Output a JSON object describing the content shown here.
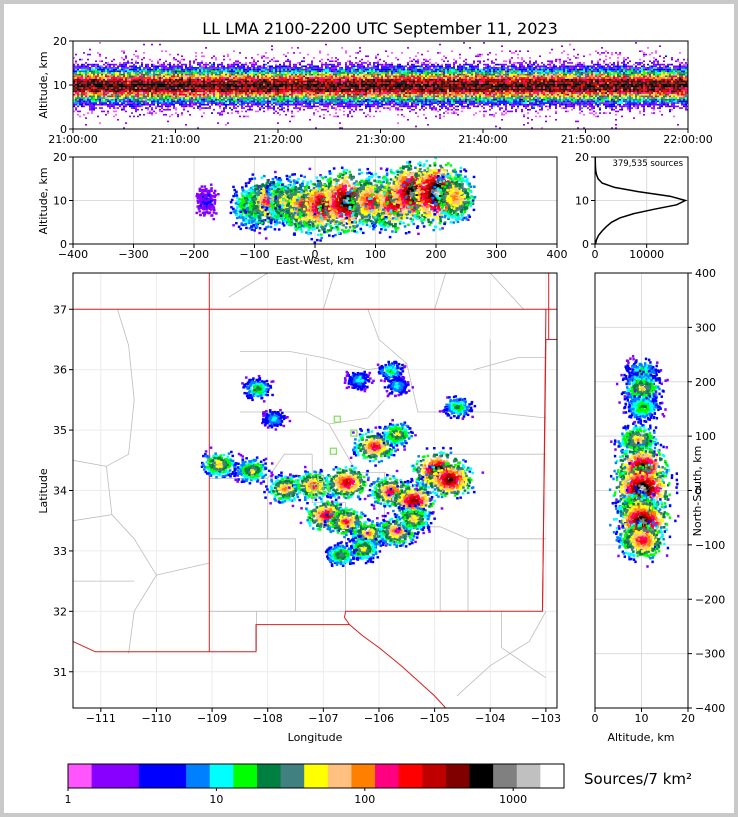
{
  "title": "LL LMA 2100-2200 UTC September 11, 2023",
  "colors": {
    "state_border": "#d62020",
    "county_border": "#bdbdbd",
    "station": "#7ee05a",
    "grid": "#dcdcdc"
  },
  "colorbar": {
    "label": "Sources/7 km²",
    "colors": [
      "#ff55ff",
      "#8800ff",
      "#8800ff",
      "#0000ff",
      "#0000ff",
      "#0080ff",
      "#00ffff",
      "#00ff00",
      "#008040",
      "#408080",
      "#ffff00",
      "#ffc080",
      "#ff8000",
      "#ff0080",
      "#ff0000",
      "#c00000",
      "#800000",
      "#000000",
      "#808080",
      "#c0c0c0",
      "#ffffff"
    ],
    "ticks": [
      "1",
      "10",
      "100",
      "1000"
    ]
  },
  "chart_data": [
    {
      "id": "time-height",
      "type": "heatmap",
      "xlabel": "",
      "ylabel": "Altitude, km",
      "x_ticks": [
        "21:00:00",
        "21:10:00",
        "21:20:00",
        "21:30:00",
        "21:40:00",
        "21:50:00",
        "22:00:00"
      ],
      "xlim": [
        "21:00:00",
        "22:00:00"
      ],
      "ylim": [
        0,
        20
      ],
      "y_ticks": [
        0,
        10,
        20
      ],
      "description_of_values": "dense sources between ~5 and ~15 km, peak near 10 km throughout the hour"
    },
    {
      "id": "eastwest-altitude",
      "type": "heatmap",
      "xlabel": "East-West, km",
      "ylabel": "Altitude, km",
      "xlim": [
        -400,
        400
      ],
      "ylim": [
        0,
        20
      ],
      "x_ticks": [
        -400,
        -300,
        -200,
        -100,
        0,
        100,
        200,
        300,
        400
      ],
      "y_ticks": [
        0,
        10,
        20
      ],
      "cells": [
        {
          "x": -180,
          "y": 10,
          "level": 2
        },
        {
          "x": -110,
          "y": 9,
          "level": 9
        },
        {
          "x": -80,
          "y": 10,
          "level": 13
        },
        {
          "x": -50,
          "y": 10,
          "level": 11
        },
        {
          "x": -20,
          "y": 9,
          "level": 14
        },
        {
          "x": 10,
          "y": 9,
          "level": 16
        },
        {
          "x": 50,
          "y": 10,
          "level": 18
        },
        {
          "x": 90,
          "y": 10,
          "level": 14
        },
        {
          "x": 130,
          "y": 10,
          "level": 16
        },
        {
          "x": 160,
          "y": 12,
          "level": 18
        },
        {
          "x": 200,
          "y": 12,
          "level": 19
        },
        {
          "x": 230,
          "y": 11,
          "level": 12
        }
      ]
    },
    {
      "id": "altitude-histogram",
      "type": "line",
      "annotation": "379,535 sources",
      "xlim": [
        0,
        18000
      ],
      "ylim": [
        0,
        20
      ],
      "x_ticks": [
        0,
        10000
      ],
      "y_ticks": [
        0,
        10,
        20
      ],
      "altitude_km": [
        0,
        1,
        2,
        3,
        4,
        5,
        6,
        7,
        8,
        9,
        10,
        11,
        12,
        13,
        14,
        15,
        16,
        17,
        18,
        19,
        20
      ],
      "sources": [
        100,
        300,
        700,
        1400,
        2200,
        3200,
        4800,
        7500,
        11500,
        15800,
        17500,
        14500,
        8500,
        3800,
        1400,
        600,
        280,
        140,
        80,
        50,
        30
      ]
    },
    {
      "id": "plan-view",
      "type": "heatmap",
      "xlabel": "Longitude",
      "ylabel": "Latitude",
      "xlim": [
        -111.5,
        -102.8
      ],
      "ylim": [
        30.4,
        37.6
      ],
      "x_ticks": [
        "−111",
        "−110",
        "−109",
        "−108",
        "−107",
        "−106",
        "−105",
        "−104",
        "−103"
      ],
      "x_tick_values": [
        -111,
        -110,
        -109,
        -108,
        -107,
        -106,
        -105,
        -104,
        -103
      ],
      "y_ticks": [
        31,
        32,
        33,
        34,
        35,
        36,
        37
      ],
      "cells": [
        {
          "lon": -108.2,
          "lat": 35.7,
          "level": 8
        },
        {
          "lon": -107.9,
          "lat": 35.2,
          "level": 6
        },
        {
          "lon": -108.9,
          "lat": 34.45,
          "level": 11
        },
        {
          "lon": -108.3,
          "lat": 34.35,
          "level": 10
        },
        {
          "lon": -107.7,
          "lat": 34.05,
          "level": 12
        },
        {
          "lon": -107.2,
          "lat": 34.1,
          "level": 13
        },
        {
          "lon": -106.6,
          "lat": 34.15,
          "level": 15
        },
        {
          "lon": -106.1,
          "lat": 34.75,
          "level": 14
        },
        {
          "lon": -105.7,
          "lat": 34.95,
          "level": 10
        },
        {
          "lon": -105.8,
          "lat": 34.0,
          "level": 14
        },
        {
          "lon": -105.4,
          "lat": 33.85,
          "level": 16
        },
        {
          "lon": -104.95,
          "lat": 34.35,
          "level": 18
        },
        {
          "lon": -104.75,
          "lat": 34.2,
          "level": 17
        },
        {
          "lon": -106.95,
          "lat": 33.6,
          "level": 15
        },
        {
          "lon": -106.6,
          "lat": 33.5,
          "level": 13
        },
        {
          "lon": -106.2,
          "lat": 33.3,
          "level": 12
        },
        {
          "lon": -105.7,
          "lat": 33.35,
          "level": 13
        },
        {
          "lon": -105.4,
          "lat": 33.55,
          "level": 11
        },
        {
          "lon": -106.3,
          "lat": 33.05,
          "level": 10
        },
        {
          "lon": -106.7,
          "lat": 32.95,
          "level": 9
        },
        {
          "lon": -106.4,
          "lat": 35.85,
          "level": 6
        },
        {
          "lon": -105.8,
          "lat": 36.0,
          "level": 7
        },
        {
          "lon": -104.6,
          "lat": 35.4,
          "level": 8
        },
        {
          "lon": -105.7,
          "lat": 35.75,
          "level": 6
        }
      ],
      "stations": [
        {
          "lon": -106.75,
          "lat": 35.18
        },
        {
          "lon": -106.45,
          "lat": 34.95
        },
        {
          "lon": -106.82,
          "lat": 34.65
        },
        {
          "lon": -107.05,
          "lat": 34.2
        },
        {
          "lon": -107.15,
          "lat": 34.05
        },
        {
          "lon": -106.95,
          "lat": 34.02
        },
        {
          "lon": -107.15,
          "lat": 33.95
        }
      ]
    },
    {
      "id": "northsouth-altitude",
      "type": "heatmap",
      "xlabel": "Altitude, km",
      "ylabel": "North-South, km",
      "xlim": [
        0,
        20
      ],
      "ylim": [
        -400,
        400
      ],
      "x_ticks": [
        0,
        10,
        20
      ],
      "y_ticks": [
        -400,
        -300,
        -200,
        -100,
        0,
        100,
        200,
        300,
        400
      ],
      "cells": [
        {
          "x": 10,
          "y": 220,
          "level": 7
        },
        {
          "x": 10,
          "y": 190,
          "level": 10
        },
        {
          "x": 10,
          "y": 155,
          "level": 8
        },
        {
          "x": 9,
          "y": 95,
          "level": 11
        },
        {
          "x": 10,
          "y": 45,
          "level": 17
        },
        {
          "x": 10,
          "y": 5,
          "level": 19
        },
        {
          "x": 9,
          "y": -30,
          "level": 12
        },
        {
          "x": 10,
          "y": -55,
          "level": 18
        },
        {
          "x": 10,
          "y": -90,
          "level": 14
        }
      ]
    }
  ]
}
